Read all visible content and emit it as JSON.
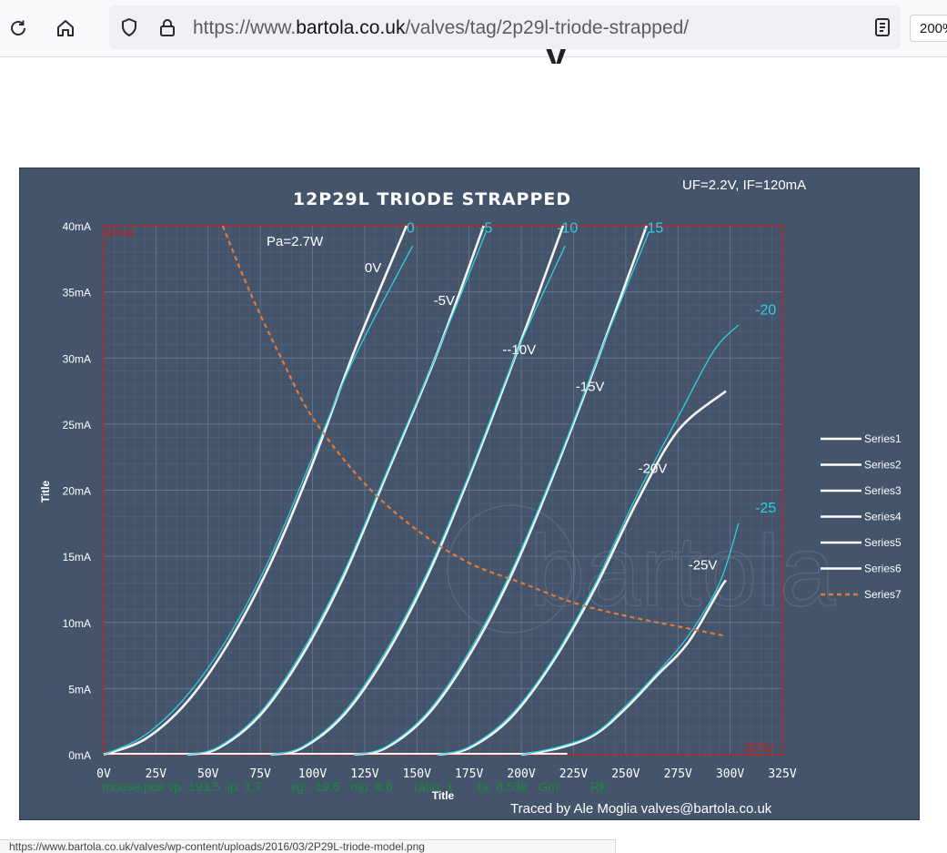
{
  "browser": {
    "url_prefix": "https://www.",
    "url_domain": "bartola.co.uk",
    "url_path": "/valves/tag/2p29l-triode-strapped/",
    "zoom": "200%",
    "icons": {
      "reload": "reload-icon",
      "home": "home-icon",
      "shield": "shield-icon",
      "lock": "lock-icon",
      "reader": "reader-view-icon"
    }
  },
  "page": {
    "heading_fragment": "y"
  },
  "chart_data": {
    "type": "line",
    "title": "12P29L  TRIODE STRAPPED",
    "subtitle": "UF=2.2V, IF=120mA",
    "xlabel": "Title",
    "ylabel": "Title",
    "xlim": [
      0,
      325
    ],
    "ylim": [
      0,
      40
    ],
    "x_ticks": [
      "0V",
      "25V",
      "50V",
      "75V",
      "100V",
      "125V",
      "150V",
      "175V",
      "200V",
      "225V",
      "250V",
      "275V",
      "300V",
      "325V"
    ],
    "y_ticks": [
      "0mA",
      "5mA",
      "10mA",
      "15mA",
      "20mA",
      "25mA",
      "30mA",
      "35mA",
      "40mA"
    ],
    "grid": true,
    "legend_position": "right",
    "legend": [
      "Series1",
      "Series2",
      "Series3",
      "Series4",
      "Series5",
      "Series6",
      "Series7"
    ],
    "corner_labels": {
      "top_left": "40mA",
      "bottom_right": "325V"
    },
    "series": [
      {
        "name": "Series1",
        "x": [
          0,
          20,
          40,
          60,
          80,
          100,
          120,
          145
        ],
        "y": [
          0,
          1.2,
          4,
          8.5,
          14.5,
          22,
          30.5,
          40
        ]
      },
      {
        "name": "Series2",
        "x": [
          40,
          55,
          75,
          95,
          115,
          135,
          160,
          182
        ],
        "y": [
          0,
          0.5,
          3,
          7.5,
          13.5,
          21,
          30.5,
          40
        ]
      },
      {
        "name": "Series3",
        "x": [
          80,
          95,
          115,
          135,
          155,
          175,
          198,
          220
        ],
        "y": [
          0,
          0.5,
          3,
          7.5,
          13.5,
          21,
          30.5,
          40
        ]
      },
      {
        "name": "Series4",
        "x": [
          120,
          135,
          155,
          175,
          195,
          215,
          238,
          260
        ],
        "y": [
          0,
          0.5,
          3,
          7.5,
          13.5,
          21,
          30.5,
          40
        ]
      },
      {
        "name": "Series5",
        "x": [
          160,
          175,
          195,
          215,
          235,
          255,
          275,
          298
        ],
        "y": [
          0,
          0.5,
          2.8,
          7,
          12.5,
          19,
          24.5,
          27.5
        ]
      },
      {
        "name": "Series6",
        "x": [
          200,
          218,
          235,
          250,
          265,
          280,
          295,
          298
        ],
        "y": [
          0,
          0.5,
          1.5,
          3.5,
          6,
          8.5,
          12.5,
          13.2
        ]
      },
      {
        "name": "Series7",
        "x": [
          57,
          70,
          85,
          100,
          125,
          150,
          175,
          200,
          225,
          250,
          275,
          297
        ],
        "y": [
          40,
          35,
          30,
          25.5,
          20.5,
          17,
          14.5,
          13,
          11.5,
          10.5,
          9.7,
          9
        ]
      }
    ],
    "cyan_overlay": [
      {
        "label": "0",
        "x": [
          0,
          20,
          40,
          60,
          80,
          100,
          120,
          148
        ],
        "y": [
          0,
          1.5,
          4.5,
          9,
          15,
          22.5,
          30,
          38.5
        ]
      },
      {
        "label": "-5",
        "x": [
          40,
          55,
          75,
          95,
          115,
          135,
          160,
          183
        ],
        "y": [
          0,
          0.6,
          3.2,
          7.8,
          13.8,
          21.2,
          30.5,
          39.5
        ]
      },
      {
        "label": "-10",
        "x": [
          80,
          95,
          115,
          135,
          155,
          175,
          198,
          221
        ],
        "y": [
          0,
          0.6,
          3.2,
          7.8,
          13.8,
          21.2,
          30.5,
          38.5
        ]
      },
      {
        "label": "-15",
        "x": [
          120,
          135,
          155,
          175,
          195,
          215,
          238,
          261
        ],
        "y": [
          0,
          0.6,
          3.2,
          7.8,
          13.8,
          21.2,
          30.5,
          39.5
        ]
      },
      {
        "label": "-20",
        "x": [
          160,
          175,
          195,
          215,
          235,
          255,
          275,
          292,
          304
        ],
        "y": [
          0,
          0.6,
          3,
          7.2,
          12.8,
          19.5,
          25.5,
          30.5,
          32.5
        ]
      },
      {
        "label": "-25",
        "x": [
          200,
          218,
          235,
          250,
          265,
          280,
          295,
          304
        ],
        "y": [
          0,
          0.6,
          1.6,
          3.7,
          6.2,
          9,
          13,
          17.5
        ]
      }
    ],
    "cyan_labels": [
      {
        "text": "0",
        "x": 145,
        "y": 39.5
      },
      {
        "text": "-5",
        "x": 180,
        "y": 39.5
      },
      {
        "text": "-10",
        "x": 217,
        "y": 39.5
      },
      {
        "text": "-15",
        "x": 258,
        "y": 39.5
      },
      {
        "text": "-20",
        "x": 312,
        "y": 33.3
      },
      {
        "text": "-25",
        "x": 312,
        "y": 18.3
      }
    ],
    "annotations": [
      {
        "text": "Pa=2.7W",
        "x": 78,
        "y": 38.5
      },
      {
        "text": "0V",
        "x": 125,
        "y": 36.5
      },
      {
        "text": "-5V",
        "x": 158,
        "y": 34
      },
      {
        "text": "--10V",
        "x": 191,
        "y": 30.3
      },
      {
        "text": "-15V",
        "x": 226,
        "y": 27.5
      },
      {
        "text": "-20V",
        "x": 256,
        "y": 21.3
      },
      {
        "text": "-25V",
        "x": 280,
        "y": 14
      }
    ],
    "mouse_readout": "mouse pos vp: 193.5  ip: 1.7        vg: -19.6   mu: 8.6      ratio: 1       ra: 8.53k   Gm:        Rk",
    "credit": "Traced by Ale  Moglia valves@bartola.co.uk",
    "watermark": "bartola"
  },
  "status": {
    "text": "https://www.bartola.co.uk/valves/wp-content/uploads/2016/03/2P29L-triode-model.png"
  },
  "colors": {
    "panel": "#44546b",
    "plot_border": "#cc1f1f",
    "grid": "#6a7890",
    "white_curve": "#f4f4f4",
    "cyan": "#2fd0e0",
    "orange": "#e07b39",
    "readout": "#1a8a3a"
  }
}
